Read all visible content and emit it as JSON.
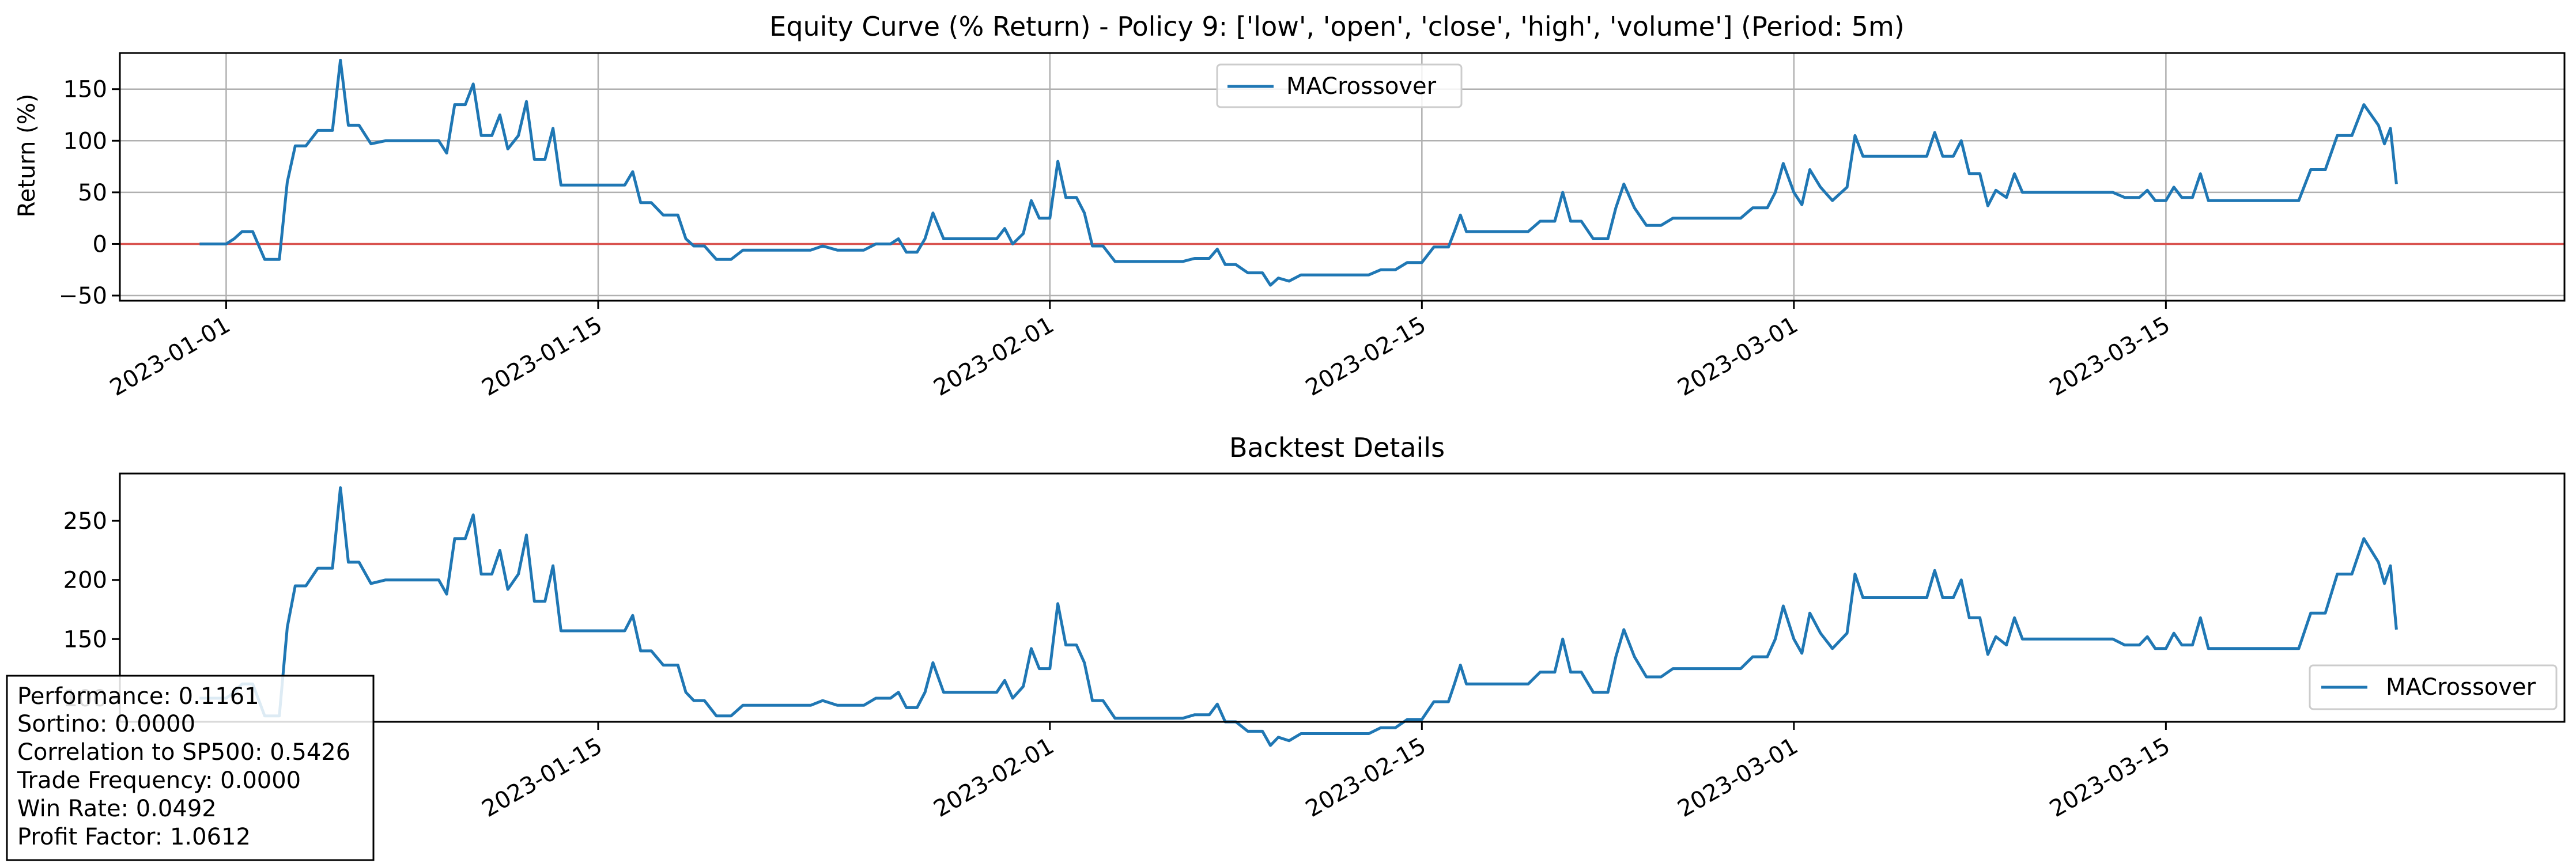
{
  "chart_data": [
    {
      "type": "line",
      "title": "Equity Curve (% Return) - Policy 9: ['low', 'open', 'close', 'high', 'volume'] (Period: 5m)",
      "xlabel": "",
      "ylabel": "Return (%)",
      "x_axis": "date",
      "xlim": [
        "2022-12-28",
        "2023-03-30"
      ],
      "ylim": [
        -55,
        185
      ],
      "xticks": [
        "2023-01-01",
        "2023-01-15",
        "2023-02-01",
        "2023-02-15",
        "2023-03-01",
        "2023-03-15"
      ],
      "yticks": [
        -50,
        0,
        50,
        100,
        150
      ],
      "grid": true,
      "legend_position": "upper center",
      "reference_line": {
        "y": 0,
        "color": "#d9534f"
      },
      "series": [
        {
          "name": "MACrossover",
          "color": "#1f77b4",
          "points": [
            [
              "2022-12-31",
              0
            ],
            [
              "2023-01-01",
              0
            ],
            [
              "2023-01-01",
              5
            ],
            [
              "2023-01-01",
              12
            ],
            [
              "2023-01-02",
              12
            ],
            [
              "2023-01-02",
              -15
            ],
            [
              "2023-01-03",
              -15
            ],
            [
              "2023-01-03",
              60
            ],
            [
              "2023-01-03",
              95
            ],
            [
              "2023-01-04",
              95
            ],
            [
              "2023-01-04",
              110
            ],
            [
              "2023-01-05",
              110
            ],
            [
              "2023-01-05",
              178
            ],
            [
              "2023-01-05",
              115
            ],
            [
              "2023-01-06",
              115
            ],
            [
              "2023-01-06",
              97
            ],
            [
              "2023-01-07",
              100
            ],
            [
              "2023-01-09",
              100
            ],
            [
              "2023-01-09",
              88
            ],
            [
              "2023-01-09",
              135
            ],
            [
              "2023-01-10",
              135
            ],
            [
              "2023-01-10",
              155
            ],
            [
              "2023-01-10",
              105
            ],
            [
              "2023-01-11",
              105
            ],
            [
              "2023-01-11",
              125
            ],
            [
              "2023-01-11",
              92
            ],
            [
              "2023-01-12",
              105
            ],
            [
              "2023-01-12",
              138
            ],
            [
              "2023-01-12",
              82
            ],
            [
              "2023-01-13",
              82
            ],
            [
              "2023-01-13",
              112
            ],
            [
              "2023-01-13",
              57
            ],
            [
              "2023-01-16",
              57
            ],
            [
              "2023-01-16",
              70
            ],
            [
              "2023-01-16",
              40
            ],
            [
              "2023-01-17",
              40
            ],
            [
              "2023-01-17",
              28
            ],
            [
              "2023-01-18",
              28
            ],
            [
              "2023-01-18",
              5
            ],
            [
              "2023-01-18",
              -2
            ],
            [
              "2023-01-19",
              -2
            ],
            [
              "2023-01-19",
              -15
            ],
            [
              "2023-01-20",
              -15
            ],
            [
              "2023-01-20",
              -6
            ],
            [
              "2023-01-23",
              -6
            ],
            [
              "2023-01-23",
              -2
            ],
            [
              "2023-01-24",
              -6
            ],
            [
              "2023-01-25",
              -6
            ],
            [
              "2023-01-25",
              0
            ],
            [
              "2023-01-26",
              0
            ],
            [
              "2023-01-26",
              5
            ],
            [
              "2023-01-26",
              -8
            ],
            [
              "2023-01-27",
              -8
            ],
            [
              "2023-01-27",
              5
            ],
            [
              "2023-01-27",
              30
            ],
            [
              "2023-01-28",
              5
            ],
            [
              "2023-01-30",
              5
            ],
            [
              "2023-01-30",
              15
            ],
            [
              "2023-01-30",
              0
            ],
            [
              "2023-01-31",
              10
            ],
            [
              "2023-01-31",
              42
            ],
            [
              "2023-01-31",
              25
            ],
            [
              "2023-02-01",
              25
            ],
            [
              "2023-02-01",
              80
            ],
            [
              "2023-02-01",
              45
            ],
            [
              "2023-02-02",
              45
            ],
            [
              "2023-02-02",
              30
            ],
            [
              "2023-02-02",
              -2
            ],
            [
              "2023-02-03",
              -2
            ],
            [
              "2023-02-03",
              -17
            ],
            [
              "2023-02-06",
              -17
            ],
            [
              "2023-02-06",
              -14
            ],
            [
              "2023-02-07",
              -14
            ],
            [
              "2023-02-07",
              -5
            ],
            [
              "2023-02-07",
              -20
            ],
            [
              "2023-02-08",
              -20
            ],
            [
              "2023-02-08",
              -28
            ],
            [
              "2023-02-09",
              -28
            ],
            [
              "2023-02-09",
              -40
            ],
            [
              "2023-02-09",
              -33
            ],
            [
              "2023-02-10",
              -36
            ],
            [
              "2023-02-10",
              -30
            ],
            [
              "2023-02-13",
              -30
            ],
            [
              "2023-02-13",
              -25
            ],
            [
              "2023-02-14",
              -25
            ],
            [
              "2023-02-14",
              -18
            ],
            [
              "2023-02-15",
              -18
            ],
            [
              "2023-02-15",
              -3
            ],
            [
              "2023-02-16",
              -3
            ],
            [
              "2023-02-16",
              12
            ],
            [
              "2023-02-16",
              28
            ],
            [
              "2023-02-16",
              12
            ],
            [
              "2023-02-19",
              12
            ],
            [
              "2023-02-19",
              22
            ],
            [
              "2023-02-20",
              22
            ],
            [
              "2023-02-20",
              50
            ],
            [
              "2023-02-20",
              22
            ],
            [
              "2023-02-21",
              22
            ],
            [
              "2023-02-21",
              5
            ],
            [
              "2023-02-22",
              5
            ],
            [
              "2023-02-22",
              35
            ],
            [
              "2023-02-22",
              58
            ],
            [
              "2023-02-23",
              35
            ],
            [
              "2023-02-23",
              18
            ],
            [
              "2023-02-24",
              18
            ],
            [
              "2023-02-24",
              25
            ],
            [
              "2023-02-27",
              25
            ],
            [
              "2023-02-27",
              35
            ],
            [
              "2023-02-28",
              35
            ],
            [
              "2023-02-28",
              50
            ],
            [
              "2023-02-28",
              78
            ],
            [
              "2023-03-01",
              50
            ],
            [
              "2023-03-01",
              38
            ],
            [
              "2023-03-01",
              72
            ],
            [
              "2023-03-02",
              55
            ],
            [
              "2023-03-02",
              42
            ],
            [
              "2023-03-03",
              55
            ],
            [
              "2023-03-03",
              105
            ],
            [
              "2023-03-03",
              85
            ],
            [
              "2023-03-06",
              85
            ],
            [
              "2023-03-06",
              108
            ],
            [
              "2023-03-06",
              85
            ],
            [
              "2023-03-07",
              85
            ],
            [
              "2023-03-07",
              100
            ],
            [
              "2023-03-07",
              68
            ],
            [
              "2023-03-08",
              68
            ],
            [
              "2023-03-08",
              37
            ],
            [
              "2023-03-08",
              52
            ],
            [
              "2023-03-09",
              45
            ],
            [
              "2023-03-09",
              68
            ],
            [
              "2023-03-09",
              50
            ],
            [
              "2023-03-11",
              50
            ],
            [
              "2023-03-13",
              50
            ],
            [
              "2023-03-13",
              45
            ],
            [
              "2023-03-14",
              45
            ],
            [
              "2023-03-14",
              52
            ],
            [
              "2023-03-14",
              42
            ],
            [
              "2023-03-15",
              42
            ],
            [
              "2023-03-15",
              55
            ],
            [
              "2023-03-15",
              45
            ],
            [
              "2023-03-16",
              45
            ],
            [
              "2023-03-16",
              68
            ],
            [
              "2023-03-16",
              42
            ],
            [
              "2023-03-17",
              42
            ],
            [
              "2023-03-20",
              42
            ],
            [
              "2023-03-20",
              72
            ],
            [
              "2023-03-21",
              72
            ],
            [
              "2023-03-21",
              105
            ],
            [
              "2023-03-22",
              105
            ],
            [
              "2023-03-22",
              135
            ],
            [
              "2023-03-23",
              115
            ],
            [
              "2023-03-23",
              97
            ],
            [
              "2023-03-23",
              112
            ],
            [
              "2023-03-23",
              58
            ]
          ]
        }
      ]
    },
    {
      "type": "line",
      "title": "Backtest Details",
      "xlabel": "",
      "ylabel": "",
      "x_axis": "date",
      "xlim": [
        "2022-12-28",
        "2023-03-30"
      ],
      "ylim": [
        80,
        290
      ],
      "xticks": [
        "2023-01-15",
        "2023-02-01",
        "2023-02-15",
        "2023-03-01",
        "2023-03-15"
      ],
      "yticks": [
        100,
        150,
        200,
        250
      ],
      "grid": false,
      "legend_position": "lower right",
      "series": [
        {
          "name": "MACrossover",
          "color": "#1f77b4",
          "offset_from_top_series": 100
        }
      ]
    }
  ],
  "metrics_box": {
    "performance": "Performance: 0.1161",
    "sortino": "Sortino: 0.0000",
    "correlation": "Correlation to SP500: 0.5426",
    "trade_frequency": "Trade Frequency: 0.0000",
    "win_rate": "Win Rate: 0.0492",
    "profit_factor": "Profit Factor: 1.0612"
  }
}
